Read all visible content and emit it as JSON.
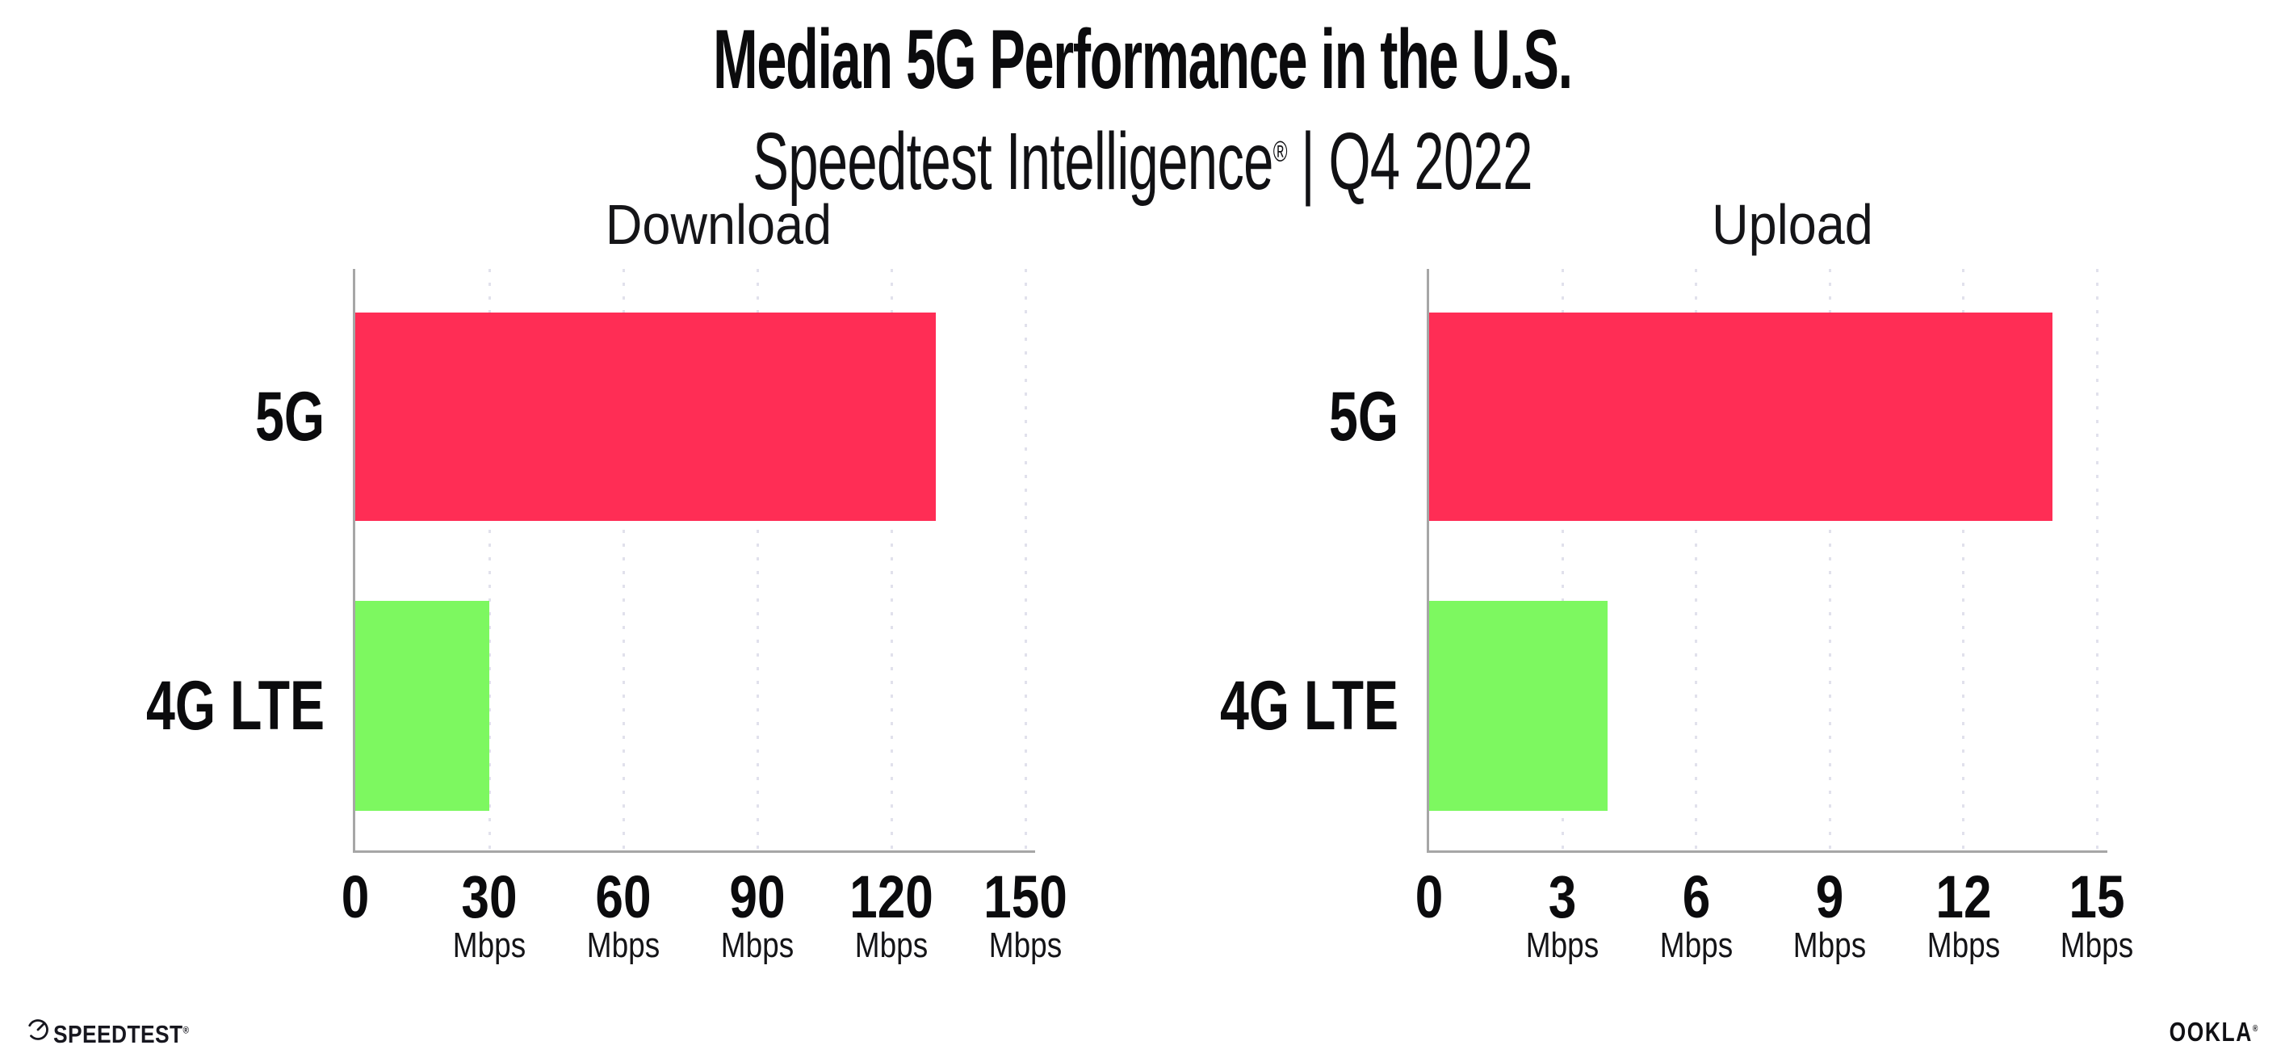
{
  "header": {
    "title": "Median 5G Performance in the U.S.",
    "subtitle_brand": "Speedtest Intelligence",
    "subtitle_reg": "®",
    "subtitle_sep": "|",
    "subtitle_period": "Q4 2022"
  },
  "footer": {
    "speedtest_label": "SPEEDTEST",
    "speedtest_reg": "®",
    "speedtest_icon": "gauge-icon",
    "ookla_label": "OOKLA",
    "ookla_reg": "®"
  },
  "colors": {
    "bar_5g": "#FF2D55",
    "bar_4g_lte": "#7DF860",
    "grid": "#E1E1EC",
    "axis": "#A6A6A6",
    "text": "#0B0B0D"
  },
  "chart_data": [
    {
      "type": "bar",
      "title": "Download",
      "orientation": "horizontal",
      "categories": [
        "5G",
        "4G LTE"
      ],
      "values": [
        130,
        30
      ],
      "unit": "Mbps",
      "xlim": [
        0,
        150
      ],
      "xticks": [
        0,
        30,
        60,
        90,
        120,
        150
      ],
      "bar_colors": [
        "#FF2D55",
        "#7DF860"
      ],
      "grid": "dotted-vertical",
      "legend": "none"
    },
    {
      "type": "bar",
      "title": "Upload",
      "orientation": "horizontal",
      "categories": [
        "5G",
        "4G LTE"
      ],
      "values": [
        14,
        4
      ],
      "unit": "Mbps",
      "xlim": [
        0,
        15
      ],
      "xticks": [
        0,
        3,
        6,
        9,
        12,
        15
      ],
      "bar_colors": [
        "#FF2D55",
        "#7DF860"
      ],
      "grid": "dotted-vertical",
      "legend": "none"
    }
  ]
}
